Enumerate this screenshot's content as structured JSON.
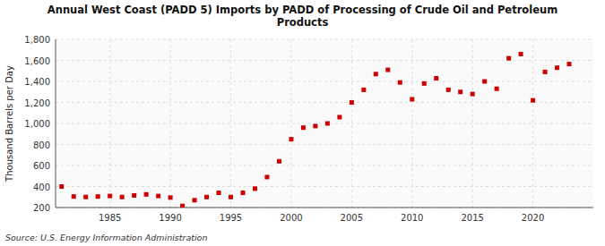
{
  "chart_data": {
    "type": "scatter",
    "title": "Annual West Coast (PADD 5) Imports by PADD of Processing of Crude Oil and Petroleum\nProducts",
    "y_label": "Thousand Barrels per Day",
    "source": "Source: U.S. Energy Information Administration",
    "x": [
      1981,
      1982,
      1983,
      1984,
      1985,
      1986,
      1987,
      1988,
      1989,
      1990,
      1991,
      1992,
      1993,
      1994,
      1995,
      1996,
      1997,
      1998,
      1999,
      2000,
      2001,
      2002,
      2003,
      2004,
      2005,
      2006,
      2007,
      2008,
      2009,
      2010,
      2011,
      2012,
      2013,
      2014,
      2015,
      2016,
      2017,
      2018,
      2019,
      2020,
      2021,
      2022,
      2023
    ],
    "values": [
      400,
      305,
      300,
      305,
      310,
      300,
      315,
      325,
      310,
      295,
      215,
      270,
      300,
      340,
      300,
      340,
      380,
      490,
      640,
      850,
      960,
      975,
      1000,
      1060,
      1200,
      1320,
      1470,
      1510,
      1390,
      1230,
      1380,
      1430,
      1320,
      1300,
      1280,
      1400,
      1330,
      1620,
      1660,
      1220,
      1490,
      1530,
      1565
    ],
    "color": "#cc0000",
    "marker": "square",
    "grid": true,
    "xlim": [
      1980.5,
      2025
    ],
    "xticks": [
      1985,
      1990,
      1995,
      2000,
      2005,
      2010,
      2015,
      2020
    ],
    "ylim": [
      200,
      1800
    ],
    "yticks": [
      200,
      400,
      600,
      800,
      {
        "value": 1000,
        "label": "1,000"
      },
      {
        "value": 1200,
        "label": "1,200"
      },
      {
        "value": 1400,
        "label": "1,400"
      },
      {
        "value": 1600,
        "label": "1,600"
      },
      {
        "value": 1800,
        "label": "1,800"
      }
    ]
  }
}
